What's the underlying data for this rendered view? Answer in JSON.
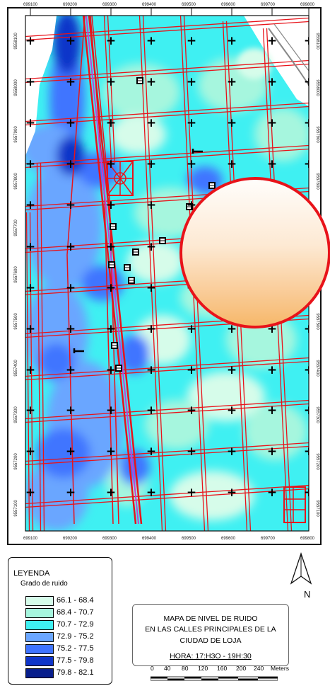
{
  "map": {
    "x_ticks": [
      "699100",
      "699200",
      "699300",
      "699400",
      "699500",
      "699600",
      "699700",
      "699800"
    ],
    "y_ticks": [
      "9558100",
      "9558000",
      "9557900",
      "9557800",
      "9557700",
      "9557600",
      "9557500",
      "9557400",
      "9557300",
      "9557200",
      "9557100"
    ],
    "street_color": "#e8131a",
    "grid_mark": "+"
  },
  "legend": {
    "title": "LEYENDA",
    "subtitle": "Grado de ruido",
    "classes": [
      {
        "range": "66.1 - 68.4",
        "color": "#d6fcea"
      },
      {
        "range": "68.4 - 70.7",
        "color": "#a6f6de"
      },
      {
        "range": "70.7 - 72.9",
        "color": "#3ff0f2"
      },
      {
        "range": "72.9 - 75.2",
        "color": "#6aa6ff"
      },
      {
        "range": "75.2 - 77.5",
        "color": "#3f74ff"
      },
      {
        "range": "77.5 - 79.8",
        "color": "#0f35c9"
      },
      {
        "range": "79.8 - 82.1",
        "color": "#081e8c"
      }
    ]
  },
  "title_box": {
    "line1": "MAPA DE NIVEL DE RUIDO",
    "line2": "EN LAS CALLES PRINCIPALES DE LA",
    "line3": "CIUDAD DE LOJA",
    "line4": "HORA: 17:H3O - 19H:30"
  },
  "north_label": "N",
  "scale": {
    "labels": [
      "0",
      "40",
      "80",
      "120",
      "160",
      "200",
      "240"
    ],
    "unit": "Meters"
  }
}
